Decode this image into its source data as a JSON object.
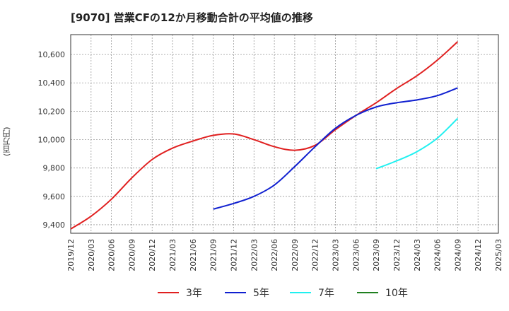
{
  "chart_data": {
    "type": "line",
    "title": "[9070]  営業CFの12か月移動合計の平均値の推移",
    "ylabel": "(百万円)",
    "xlabel": "",
    "ylim": [
      9340,
      10740
    ],
    "yticks": [
      9400,
      9600,
      9800,
      10000,
      10200,
      10400,
      10600
    ],
    "ytick_labels": [
      "9,400",
      "9,600",
      "9,800",
      "10,000",
      "10,200",
      "10,400",
      "10,600"
    ],
    "x_ticks": [
      "2019/12",
      "2020/03",
      "2020/06",
      "2020/09",
      "2020/12",
      "2021/03",
      "2021/06",
      "2021/09",
      "2021/12",
      "2022/03",
      "2022/06",
      "2022/09",
      "2022/12",
      "2023/03",
      "2023/06",
      "2023/09",
      "2023/12",
      "2024/03",
      "2024/06",
      "2024/09",
      "2024/12",
      "2025/03"
    ],
    "grid": true,
    "legend_position": "bottom",
    "series": [
      {
        "name": "3年",
        "color": "#e02020",
        "x": [
          "2019/12",
          "2020/03",
          "2020/06",
          "2020/09",
          "2020/12",
          "2021/03",
          "2021/06",
          "2021/09",
          "2021/12",
          "2022/03",
          "2022/06",
          "2022/09",
          "2022/12",
          "2023/03",
          "2023/06",
          "2023/09",
          "2023/12",
          "2024/03",
          "2024/06",
          "2024/09"
        ],
        "values": [
          9370,
          9460,
          9580,
          9730,
          9860,
          9940,
          9990,
          10030,
          10040,
          10000,
          9950,
          9925,
          9960,
          10070,
          10170,
          10260,
          10360,
          10450,
          10560,
          10690
        ]
      },
      {
        "name": "5年",
        "color": "#1020d0",
        "x": [
          "2021/09",
          "2021/12",
          "2022/03",
          "2022/06",
          "2022/09",
          "2022/12",
          "2023/03",
          "2023/06",
          "2023/09",
          "2023/12",
          "2024/03",
          "2024/06",
          "2024/09"
        ],
        "values": [
          9510,
          9550,
          9600,
          9680,
          9810,
          9950,
          10080,
          10170,
          10230,
          10260,
          10280,
          10310,
          10365
        ]
      },
      {
        "name": "7年",
        "color": "#20f0f0",
        "x": [
          "2023/09",
          "2023/12",
          "2024/03",
          "2024/06",
          "2024/09"
        ],
        "values": [
          9795,
          9850,
          9915,
          10010,
          10150
        ]
      },
      {
        "name": "10年",
        "color": "#208020",
        "x": [],
        "values": []
      }
    ]
  }
}
